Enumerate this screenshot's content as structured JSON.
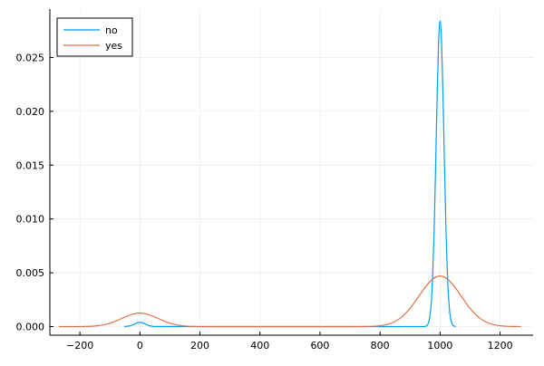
{
  "chart_data": {
    "type": "line",
    "title": "",
    "xlabel": "",
    "ylabel": "",
    "xlim": [
      -300,
      1310
    ],
    "ylim": [
      -0.0008,
      0.0295
    ],
    "xticks": [
      -200,
      0,
      200,
      400,
      600,
      800,
      1000,
      1200
    ],
    "xtick_labels": [
      "−200",
      "0",
      "200",
      "400",
      "600",
      "800",
      "1000",
      "1200"
    ],
    "yticks": [
      0,
      0.005,
      0.01,
      0.015,
      0.02,
      0.025
    ],
    "ytick_labels": [
      "0.000",
      "0.005",
      "0.010",
      "0.015",
      "0.020",
      "0.025"
    ],
    "grid": true,
    "legend_position": "top-left",
    "series": [
      {
        "name": "no",
        "color": "#009AFA",
        "x": [
          -52,
          -50,
          -40,
          -30,
          -20,
          -10,
          0,
          10,
          20,
          30,
          40,
          50,
          200,
          500,
          800,
          945,
          950,
          955,
          960,
          965,
          970,
          975,
          980,
          985,
          990,
          995,
          1000,
          1005,
          1010,
          1015,
          1020,
          1025,
          1030,
          1035,
          1040,
          1045,
          1050,
          1052
        ],
        "y": [
          0,
          8e-06,
          3.4e-05,
          0.0001,
          0.000216,
          0.000343,
          0.0004,
          0.000343,
          0.000216,
          0.0001,
          3.4e-05,
          8e-06,
          0,
          0,
          0,
          4e-06,
          1.7e-05,
          7.1e-05,
          0.00025,
          0.000758,
          0.00198,
          0.00446,
          0.00869,
          0.0146,
          0.02113,
          0.02638,
          0.0284,
          0.02638,
          0.02113,
          0.0146,
          0.00869,
          0.00446,
          0.00198,
          0.000758,
          0.00025,
          7.1e-05,
          1.7e-05,
          1e-05
        ]
      },
      {
        "name": "yes",
        "color": "#E26F46",
        "x": [
          -270,
          -250,
          -225,
          -200,
          -175,
          -150,
          -125,
          -100,
          -75,
          -50,
          -25,
          0,
          25,
          50,
          75,
          100,
          125,
          150,
          175,
          200,
          225,
          250,
          275,
          400,
          600,
          725,
          750,
          775,
          800,
          825,
          850,
          875,
          900,
          925,
          950,
          975,
          1000,
          1025,
          1050,
          1075,
          1100,
          1125,
          1150,
          1175,
          1200,
          1225,
          1250,
          1270
        ],
        "y": [
          0,
          0,
          1e-06,
          5e-06,
          1.8e-05,
          5.5e-05,
          0.000144,
          0.000314,
          0.000577,
          0.000891,
          0.001155,
          0.00126,
          0.001155,
          0.000891,
          0.000577,
          0.000314,
          0.000144,
          5.5e-05,
          1.8e-05,
          5e-06,
          1e-06,
          0,
          0,
          0,
          0,
          2e-06,
          8e-06,
          2.7e-05,
          7.9e-05,
          0.000207,
          0.000473,
          0.000954,
          0.00169,
          0.00265,
          0.00364,
          0.00441,
          0.0047,
          0.00441,
          0.00364,
          0.00265,
          0.00169,
          0.000954,
          0.000473,
          0.000207,
          7.9e-05,
          2.7e-05,
          8e-06,
          3e-06
        ]
      }
    ]
  }
}
